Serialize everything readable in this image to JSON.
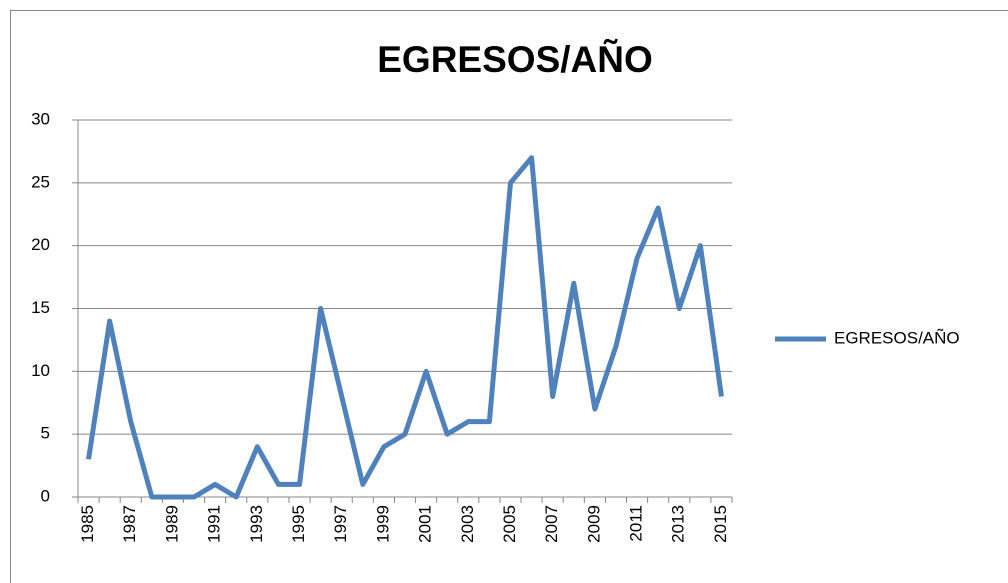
{
  "chart_data": {
    "type": "line",
    "title": "EGRESOS/AÑO",
    "categories": [
      "1985",
      null,
      "1987",
      null,
      "1989",
      null,
      "1991",
      null,
      "1993",
      null,
      "1995",
      null,
      "1997",
      null,
      "1999",
      null,
      "2001",
      null,
      "2003",
      null,
      "2005",
      null,
      "2007",
      null,
      "2009",
      null,
      "2011",
      null,
      "2013",
      null,
      "2015"
    ],
    "series": [
      {
        "name": "EGRESOS/AÑO",
        "color": "#4f81bd",
        "values": [
          3,
          14,
          6,
          0,
          0,
          0,
          1,
          0,
          4,
          1,
          1,
          15,
          8,
          1,
          4,
          5,
          10,
          5,
          6,
          6,
          25,
          27,
          8,
          17,
          7,
          12,
          19,
          23,
          15,
          20,
          8
        ]
      }
    ],
    "ylim": [
      0,
      30
    ],
    "yticks": [
      0,
      5,
      10,
      15,
      20,
      25,
      30
    ],
    "grid": true,
    "legend": "right"
  }
}
